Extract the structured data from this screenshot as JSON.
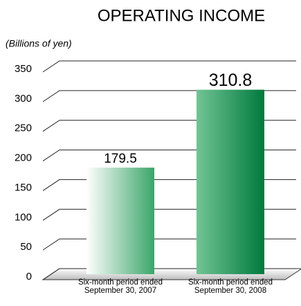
{
  "chart_data": {
    "type": "bar",
    "title": "OPERATING INCOME",
    "y_label": "(Billions of yen)",
    "categories": [
      "Six-month period ended\nSeptember 30, 2007",
      "Six-month period ended\nSeptember 30, 2008"
    ],
    "values": [
      179.5,
      310.8
    ],
    "colors": [
      [
        "#ffffff",
        "#3aa66a"
      ],
      [
        "#72c494",
        "#007a3d"
      ]
    ],
    "ylim": [
      0,
      350
    ],
    "yticks": [
      0,
      50,
      100,
      150,
      200,
      250,
      300,
      350
    ],
    "grid": true
  }
}
